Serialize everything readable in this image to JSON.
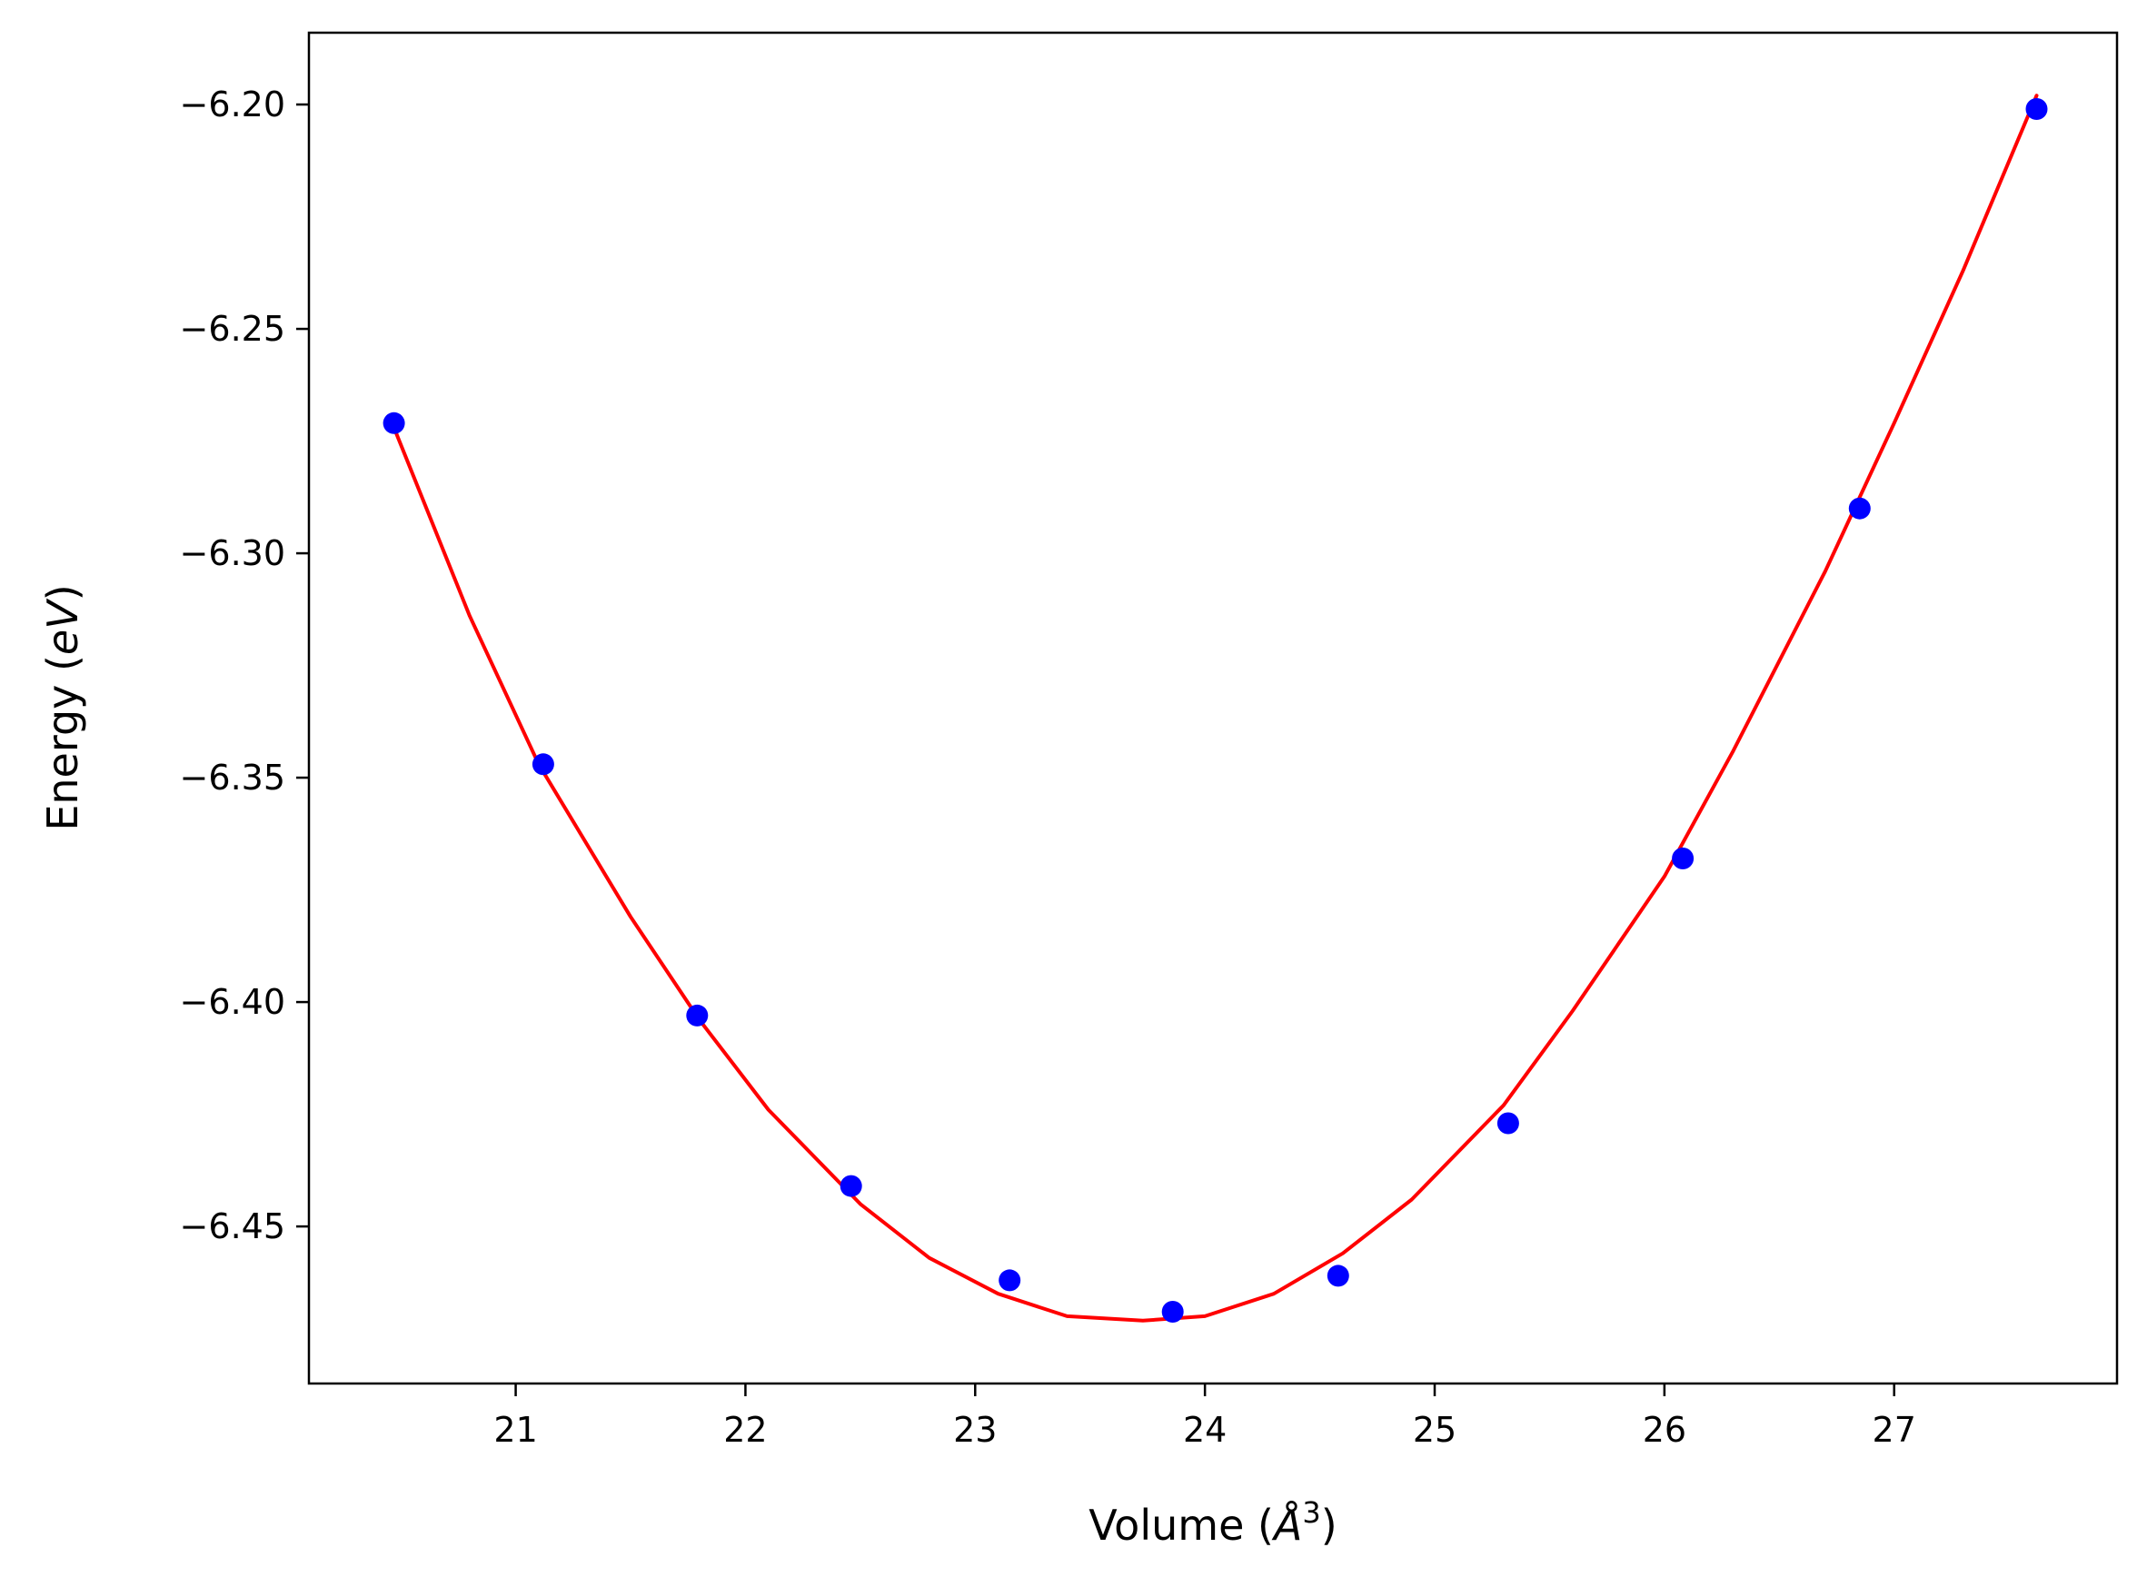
{
  "chart_data": {
    "type": "scatter",
    "title": "",
    "xlabel": "Volume ($\\AA^3$)",
    "ylabel": "Energy ($eV$)",
    "xlabel_parts": {
      "before": "Volume (",
      "italic": "Å",
      "sup": "3",
      "after": ")"
    },
    "ylabel_parts": {
      "before": "Energy (",
      "italic": "eV",
      "after": ")"
    },
    "xlim": [
      20.1,
      27.97
    ],
    "ylim": [
      -6.485,
      -6.184
    ],
    "x_ticks": [
      21,
      22,
      23,
      24,
      25,
      26,
      27
    ],
    "x_tick_labels": [
      "21",
      "22",
      "23",
      "24",
      "25",
      "26",
      "27"
    ],
    "y_ticks": [
      -6.2,
      -6.25,
      -6.3,
      -6.35,
      -6.4,
      -6.45
    ],
    "y_tick_labels": [
      "−6.20",
      "−6.25",
      "−6.30",
      "−6.35",
      "−6.40",
      "−6.45"
    ],
    "grid": false,
    "legend": "none",
    "series": [
      {
        "kind": "points",
        "color": "#0000ff",
        "x": [
          20.47,
          21.12,
          21.79,
          22.46,
          23.15,
          23.86,
          24.58,
          25.32,
          26.08,
          26.85,
          27.62
        ],
        "y": [
          -6.271,
          -6.347,
          -6.403,
          -6.441,
          -6.462,
          -6.469,
          -6.461,
          -6.427,
          -6.368,
          -6.29,
          -6.201
        ]
      },
      {
        "kind": "fit-line",
        "color": "#ff0000",
        "x": [
          20.47,
          20.8,
          21.1,
          21.5,
          21.8,
          22.1,
          22.5,
          22.8,
          23.1,
          23.4,
          23.73,
          24.0,
          24.3,
          24.6,
          24.9,
          25.3,
          25.6,
          26.0,
          26.3,
          26.7,
          27.0,
          27.3,
          27.62
        ],
        "y": [
          -6.272,
          -6.314,
          -6.347,
          -6.381,
          -6.404,
          -6.424,
          -6.445,
          -6.457,
          -6.465,
          -6.47,
          -6.471,
          -6.47,
          -6.465,
          -6.456,
          -6.444,
          -6.423,
          -6.402,
          -6.372,
          -6.344,
          -6.304,
          -6.271,
          -6.237,
          -6.198
        ]
      }
    ]
  }
}
